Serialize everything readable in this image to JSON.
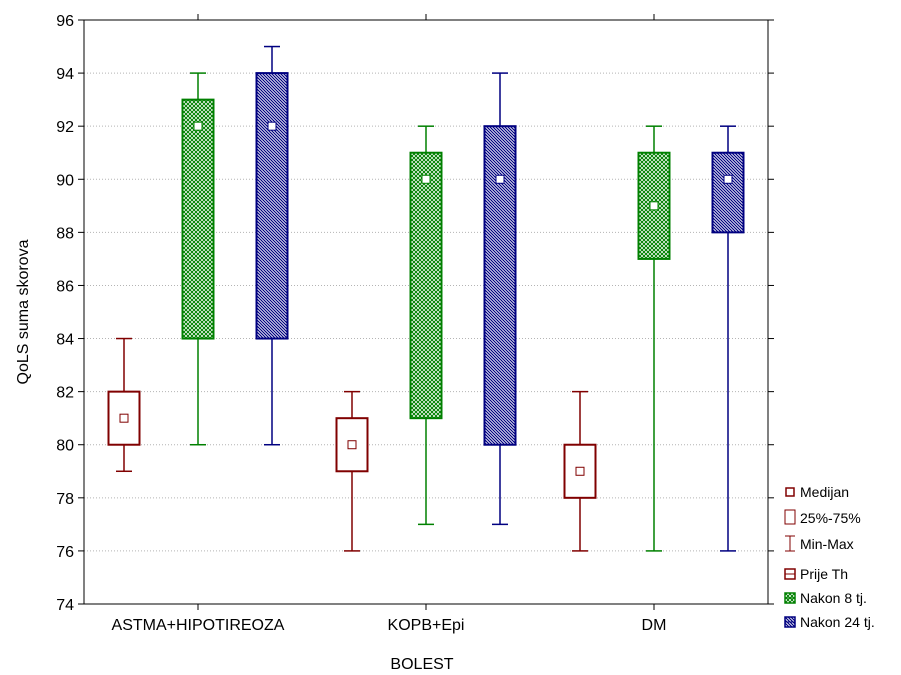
{
  "chart_data": {
    "type": "boxplot",
    "xlabel": "BOLEST",
    "ylabel": "QoLS suma skorova",
    "ylim": [
      74,
      96
    ],
    "yticks": [
      74,
      76,
      78,
      80,
      82,
      84,
      86,
      88,
      90,
      92,
      94,
      96
    ],
    "grid": true,
    "legend_position": "bottom-right-outside",
    "categories": [
      "ASTMA+HIPOTIREOZA",
      "KOPB+Epi",
      "DM"
    ],
    "series": [
      {
        "name": "Prije Th",
        "color": "#800000",
        "pattern": "none",
        "stats": [
          {
            "median": 81,
            "q1": 80,
            "q3": 82,
            "min": 79,
            "max": 84
          },
          {
            "median": 80,
            "q1": 79,
            "q3": 81,
            "min": 76,
            "max": 82
          },
          {
            "median": 79,
            "q1": 78,
            "q3": 80,
            "min": 76,
            "max": 82
          }
        ]
      },
      {
        "name": "Nakon 8 tj.",
        "color": "#008000",
        "pattern": "crosshatch",
        "stats": [
          {
            "median": 92,
            "q1": 84,
            "q3": 93,
            "min": 80,
            "max": 94
          },
          {
            "median": 90,
            "q1": 81,
            "q3": 91,
            "min": 77,
            "max": 92
          },
          {
            "median": 89,
            "q1": 87,
            "q3": 91,
            "min": 76,
            "max": 92
          }
        ]
      },
      {
        "name": "Nakon 24 tj.",
        "color": "#000080",
        "pattern": "diagonal",
        "stats": [
          {
            "median": 92,
            "q1": 84,
            "q3": 94,
            "min": 80,
            "max": 95
          },
          {
            "median": 90,
            "q1": 80,
            "q3": 92,
            "min": 77,
            "max": 94
          },
          {
            "median": 90,
            "q1": 88,
            "q3": 91,
            "min": 76,
            "max": 92
          }
        ]
      }
    ],
    "legend_items": [
      {
        "label": "Medijan",
        "symbol": "median",
        "color": "#800000"
      },
      {
        "label": "25%-75%",
        "symbol": "box",
        "color": "#800000"
      },
      {
        "label": "Min-Max",
        "symbol": "whisker",
        "color": "#800000"
      },
      {
        "label": "Prije Th",
        "symbol": "series",
        "series": 0
      },
      {
        "label": "Nakon 8 tj.",
        "symbol": "series",
        "series": 1
      },
      {
        "label": "Nakon 24 tj.",
        "symbol": "series",
        "series": 2
      }
    ]
  }
}
